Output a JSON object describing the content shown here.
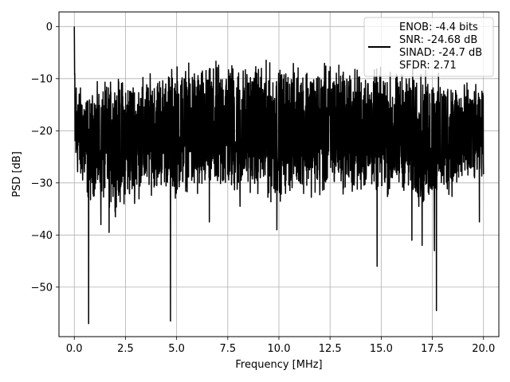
{
  "chart_data": {
    "type": "line",
    "title": "",
    "xlabel": "Frequency [MHz]",
    "ylabel": "PSD [dB]",
    "xlim": [
      -0.75,
      20.75
    ],
    "ylim": [
      -59.5,
      2.8
    ],
    "grid": true,
    "legend_placement": "top-right",
    "x_ticks": [
      0.0,
      2.5,
      5.0,
      7.5,
      10.0,
      12.5,
      15.0,
      17.5,
      20.0
    ],
    "x_tick_labels": [
      "0.0",
      "2.5",
      "5.0",
      "7.5",
      "10.0",
      "12.5",
      "15.0",
      "17.5",
      "20.0"
    ],
    "y_ticks": [
      0,
      -10,
      -20,
      -30,
      -40,
      -50
    ],
    "y_tick_labels": [
      "0",
      "−10",
      "−20",
      "−30",
      "−40",
      "−50"
    ],
    "line_color": "#000000",
    "legend_lines": [
      "ENOB: -4.4 bits",
      "SNR: -24.68 dB",
      "SINAD: -24.7 dB",
      "SFDR: 2.71"
    ],
    "series": [
      {
        "name": "ENOB: -4.4 bits SNR: -24.68 dB SINAD: -24.7 dB SFDR: 2.71",
        "x_range": [
          0.0,
          20.0
        ],
        "envelope": {
          "x": [
            0.0,
            0.05,
            0.1,
            0.2,
            0.3,
            0.5,
            0.75,
            1.0,
            1.5,
            2.0,
            2.5,
            3.0,
            3.5,
            4.0,
            4.5,
            5.0,
            5.5,
            6.0,
            6.5,
            7.0,
            7.5,
            8.0,
            8.5,
            9.0,
            9.5,
            10.0,
            10.5,
            11.0,
            11.5,
            12.0,
            12.5,
            13.0,
            13.5,
            14.0,
            14.5,
            15.0,
            15.5,
            16.0,
            16.5,
            17.0,
            17.5,
            18.0,
            18.5,
            19.0,
            19.5,
            20.0
          ],
          "upper": [
            0,
            -5,
            -8,
            -9,
            -10,
            -10,
            -12,
            -10,
            -9,
            -8,
            -8,
            -8,
            -8,
            -7,
            -7,
            -5,
            -6,
            -5,
            -6,
            -5,
            -4,
            -5,
            -6,
            -5,
            -5,
            -6,
            -6,
            -5,
            -5,
            -6,
            -5,
            -5,
            -6,
            -6,
            -7,
            -6,
            -7,
            -7,
            -6,
            -7,
            -7,
            -8,
            -8,
            -9,
            -10,
            -11
          ],
          "lower": [
            -22,
            -33,
            -30,
            -31,
            -32,
            -33,
            -36,
            -34,
            -36,
            -37,
            -36,
            -35,
            -34,
            -33,
            -33,
            -35,
            -33,
            -36,
            -34,
            -35,
            -34,
            -35,
            -33,
            -34,
            -36,
            -35,
            -34,
            -33,
            -34,
            -35,
            -34,
            -33,
            -35,
            -34,
            -33,
            -34,
            -35,
            -33,
            -35,
            -37,
            -36,
            -35,
            -34,
            -33,
            -32,
            -30
          ]
        },
        "notable_dips": [
          {
            "x": 0.7,
            "y": -57
          },
          {
            "x": 1.3,
            "y": -38
          },
          {
            "x": 1.7,
            "y": -39.5
          },
          {
            "x": 4.7,
            "y": -56.5
          },
          {
            "x": 6.6,
            "y": -37.5
          },
          {
            "x": 8.1,
            "y": -34.5
          },
          {
            "x": 9.9,
            "y": -39
          },
          {
            "x": 14.8,
            "y": -46
          },
          {
            "x": 16.5,
            "y": -41
          },
          {
            "x": 17.0,
            "y": -42
          },
          {
            "x": 17.6,
            "y": -43
          },
          {
            "x": 17.7,
            "y": -54.5
          },
          {
            "x": 19.8,
            "y": -37.5
          }
        ]
      }
    ]
  }
}
